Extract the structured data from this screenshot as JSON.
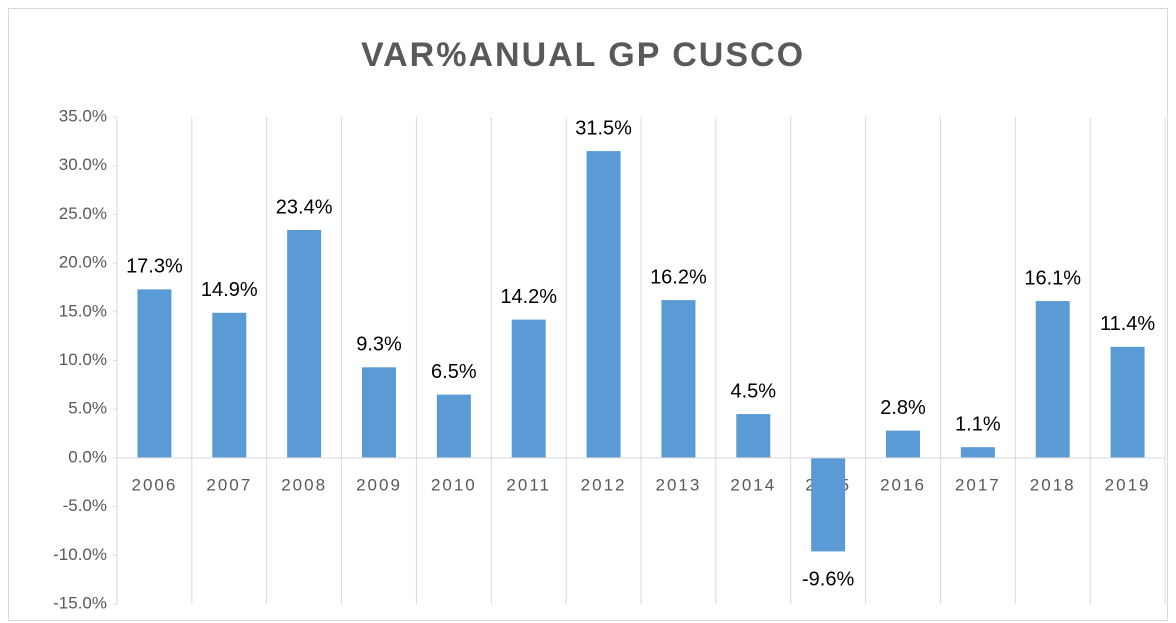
{
  "chart_data": {
    "type": "bar",
    "title": "VAR%ANUAL GP CUSCO",
    "categories": [
      "2006",
      "2007",
      "2008",
      "2009",
      "2010",
      "2011",
      "2012",
      "2013",
      "2014",
      "2015",
      "2016",
      "2017",
      "2018",
      "2019"
    ],
    "values": [
      17.3,
      14.9,
      23.4,
      9.3,
      6.5,
      14.2,
      31.5,
      16.2,
      4.5,
      -9.6,
      2.8,
      1.1,
      16.1,
      11.4
    ],
    "value_labels": [
      "17.3%",
      "14.9%",
      "23.4%",
      "9.3%",
      "6.5%",
      "14.2%",
      "31.5%",
      "16.2%",
      "4.5%",
      "-9.6%",
      "2.8%",
      "1.1%",
      "16.1%",
      "11.4%"
    ],
    "color": "#5b9bd5",
    "ylim": [
      -15,
      35
    ],
    "yticks": [
      {
        "value": -15,
        "label": "-15.0%"
      },
      {
        "value": -10,
        "label": "-10.0%"
      },
      {
        "value": -5,
        "label": "-5.0%"
      },
      {
        "value": 0,
        "label": "0.0%"
      },
      {
        "value": 5,
        "label": "5.0%"
      },
      {
        "value": 10,
        "label": "10.0%"
      },
      {
        "value": 15,
        "label": "15.0%"
      },
      {
        "value": 20,
        "label": "20.0%"
      },
      {
        "value": 25,
        "label": "25.0%"
      },
      {
        "value": 30,
        "label": "30.0%"
      },
      {
        "value": 35,
        "label": "35.0%"
      }
    ],
    "vertical_grid": true
  }
}
